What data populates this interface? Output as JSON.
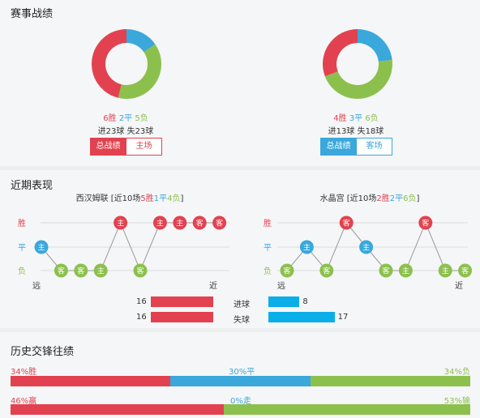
{
  "section1": {
    "title": "赛事战绩",
    "left": {
      "wins": "6胜",
      "draws": "2平",
      "losses": "5负",
      "goals_line": "进23球 失23球",
      "btn_active": "总战绩",
      "btn_inactive": "主场",
      "record": {
        "wins": 6,
        "draws": 2,
        "losses": 5
      }
    },
    "right": {
      "wins": "4胜",
      "draws": "3平",
      "losses": "6负",
      "goals_line": "进13球 失18球",
      "btn_active": "总战绩",
      "btn_inactive": "客场",
      "record": {
        "wins": 4,
        "draws": 3,
        "losses": 6
      }
    }
  },
  "section2": {
    "title": "近期表现",
    "left_team": {
      "name": "西汉姆联",
      "pre": " [近10场",
      "w": "5胜",
      "d": "1平",
      "l": "4负",
      "post": "]"
    },
    "right_team": {
      "name": "水晶宫",
      "pre": " [近10场",
      "w": "2胜",
      "d": "2平",
      "l": "6负",
      "post": "]"
    },
    "row_labels": {
      "win": "胜",
      "draw": "平",
      "loss": "负"
    },
    "far": "远",
    "near": "近",
    "left_form": [
      {
        "r": "D",
        "t": "主"
      },
      {
        "r": "L",
        "t": "客"
      },
      {
        "r": "L",
        "t": "客"
      },
      {
        "r": "L",
        "t": "主"
      },
      {
        "r": "W",
        "t": "主"
      },
      {
        "r": "L",
        "t": "客"
      },
      {
        "r": "W",
        "t": "主"
      },
      {
        "r": "W",
        "t": "主"
      },
      {
        "r": "W",
        "t": "客"
      },
      {
        "r": "W",
        "t": "客"
      }
    ],
    "right_form": [
      {
        "r": "L",
        "t": "客"
      },
      {
        "r": "D",
        "t": "主"
      },
      {
        "r": "L",
        "t": "客"
      },
      {
        "r": "W",
        "t": "客"
      },
      {
        "r": "D",
        "t": "主"
      },
      {
        "r": "L",
        "t": "客"
      },
      {
        "r": "L",
        "t": "主"
      },
      {
        "r": "W",
        "t": "客"
      },
      {
        "r": "L",
        "t": "主"
      },
      {
        "r": "L",
        "t": "客"
      }
    ],
    "goals": {
      "label_for": "进球",
      "label_against": "失球",
      "left_for": 16,
      "left_against": 16,
      "right_for": 8,
      "right_against": 17,
      "left_for_text": "16",
      "left_against_text": "16",
      "right_for_text": "8",
      "right_against_text": "17"
    }
  },
  "section3": {
    "title": "历史交锋往绩",
    "row1": {
      "left": "34%胜",
      "mid": "30%平",
      "right": "34%负",
      "a": 34,
      "b": 30,
      "c": 34
    },
    "row2": {
      "left": "46%赢",
      "mid": "0%走",
      "right": "53%输",
      "a": 46,
      "b": 0,
      "c": 53
    }
  },
  "colors": {
    "red": "#e2424f",
    "blue": "#3aa8db",
    "green": "#8cc04d",
    "cyan": "#0aaee8"
  }
}
